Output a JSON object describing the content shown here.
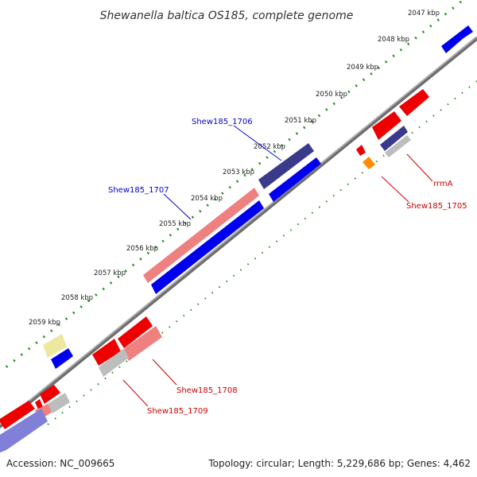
{
  "title": "Shewanella baltica OS185, complete genome",
  "footer": {
    "accession": "Accession: NC_009665",
    "summary": "Topology: circular; Length: 5,229,686 bp; Genes: 4,462"
  },
  "ticks": [
    "2047 kbp",
    "2048 kbp",
    "2049 kbp",
    "2050 kbp",
    "2051 kbp",
    "2052 kbp",
    "2053 kbp",
    "2054 kbp",
    "2055 kbp",
    "2056 kbp",
    "2057 kbp",
    "2058 kbp",
    "2059 kbp"
  ],
  "gene_labels": [
    {
      "text": "Shew185_1706",
      "color": "#0000cc"
    },
    {
      "text": "Shew185_1707",
      "color": "#0000cc"
    },
    {
      "text": "rrmA",
      "color": "#cc0000"
    },
    {
      "text": "Shew185_1705",
      "color": "#cc0000"
    },
    {
      "text": "Shew185_1708",
      "color": "#cc0000"
    },
    {
      "text": "Shew185_1709",
      "color": "#cc0000"
    }
  ],
  "colors": {
    "backbone": "#888888",
    "tick_dots": "#228b22",
    "cds_blue": "#0000ee",
    "cds_red": "#ee0000",
    "cds_pink": "#ee8080",
    "cds_navy": "#3a3a8a",
    "cds_gray": "#bdbdbd",
    "cds_yellow": "#eee7a0",
    "cds_orange": "#ff8c00",
    "cds_lavender": "#8080d8"
  }
}
